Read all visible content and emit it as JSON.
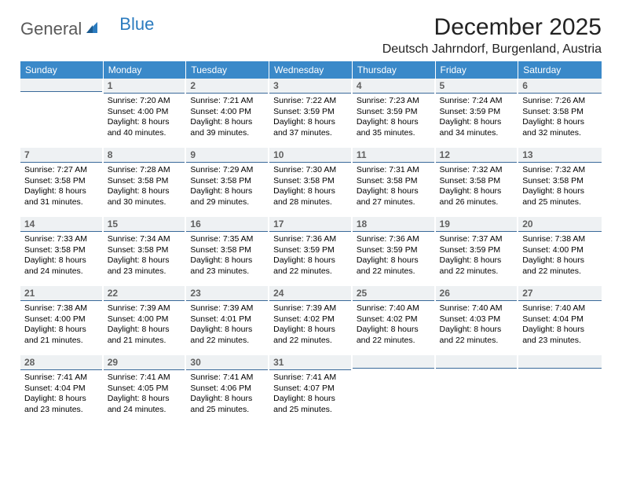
{
  "logo": {
    "word1": "General",
    "word2": "Blue"
  },
  "title": "December 2025",
  "location": "Deutsch Jahrndorf, Burgenland, Austria",
  "day_headers": [
    "Sunday",
    "Monday",
    "Tuesday",
    "Wednesday",
    "Thursday",
    "Friday",
    "Saturday"
  ],
  "colors": {
    "header_bg": "#3a89c9",
    "header_text": "#ffffff",
    "daynum_bg": "#eef1f3",
    "daynum_border": "#3a6a9a",
    "daynum_text": "#606060",
    "logo_gray": "#5a5a5a",
    "logo_blue": "#2b7bbf",
    "body_text": "#000000"
  },
  "fonts": {
    "title_size": 30,
    "location_size": 16,
    "dayhead_size": 12,
    "daynum_size": 12,
    "body_size": 10.5
  },
  "weeks": [
    [
      {
        "blank": true
      },
      {
        "num": "1",
        "sunrise": "Sunrise: 7:20 AM",
        "sunset": "Sunset: 4:00 PM",
        "daylight1": "Daylight: 8 hours",
        "daylight2": "and 40 minutes."
      },
      {
        "num": "2",
        "sunrise": "Sunrise: 7:21 AM",
        "sunset": "Sunset: 4:00 PM",
        "daylight1": "Daylight: 8 hours",
        "daylight2": "and 39 minutes."
      },
      {
        "num": "3",
        "sunrise": "Sunrise: 7:22 AM",
        "sunset": "Sunset: 3:59 PM",
        "daylight1": "Daylight: 8 hours",
        "daylight2": "and 37 minutes."
      },
      {
        "num": "4",
        "sunrise": "Sunrise: 7:23 AM",
        "sunset": "Sunset: 3:59 PM",
        "daylight1": "Daylight: 8 hours",
        "daylight2": "and 35 minutes."
      },
      {
        "num": "5",
        "sunrise": "Sunrise: 7:24 AM",
        "sunset": "Sunset: 3:59 PM",
        "daylight1": "Daylight: 8 hours",
        "daylight2": "and 34 minutes."
      },
      {
        "num": "6",
        "sunrise": "Sunrise: 7:26 AM",
        "sunset": "Sunset: 3:58 PM",
        "daylight1": "Daylight: 8 hours",
        "daylight2": "and 32 minutes."
      }
    ],
    [
      {
        "num": "7",
        "sunrise": "Sunrise: 7:27 AM",
        "sunset": "Sunset: 3:58 PM",
        "daylight1": "Daylight: 8 hours",
        "daylight2": "and 31 minutes."
      },
      {
        "num": "8",
        "sunrise": "Sunrise: 7:28 AM",
        "sunset": "Sunset: 3:58 PM",
        "daylight1": "Daylight: 8 hours",
        "daylight2": "and 30 minutes."
      },
      {
        "num": "9",
        "sunrise": "Sunrise: 7:29 AM",
        "sunset": "Sunset: 3:58 PM",
        "daylight1": "Daylight: 8 hours",
        "daylight2": "and 29 minutes."
      },
      {
        "num": "10",
        "sunrise": "Sunrise: 7:30 AM",
        "sunset": "Sunset: 3:58 PM",
        "daylight1": "Daylight: 8 hours",
        "daylight2": "and 28 minutes."
      },
      {
        "num": "11",
        "sunrise": "Sunrise: 7:31 AM",
        "sunset": "Sunset: 3:58 PM",
        "daylight1": "Daylight: 8 hours",
        "daylight2": "and 27 minutes."
      },
      {
        "num": "12",
        "sunrise": "Sunrise: 7:32 AM",
        "sunset": "Sunset: 3:58 PM",
        "daylight1": "Daylight: 8 hours",
        "daylight2": "and 26 minutes."
      },
      {
        "num": "13",
        "sunrise": "Sunrise: 7:32 AM",
        "sunset": "Sunset: 3:58 PM",
        "daylight1": "Daylight: 8 hours",
        "daylight2": "and 25 minutes."
      }
    ],
    [
      {
        "num": "14",
        "sunrise": "Sunrise: 7:33 AM",
        "sunset": "Sunset: 3:58 PM",
        "daylight1": "Daylight: 8 hours",
        "daylight2": "and 24 minutes."
      },
      {
        "num": "15",
        "sunrise": "Sunrise: 7:34 AM",
        "sunset": "Sunset: 3:58 PM",
        "daylight1": "Daylight: 8 hours",
        "daylight2": "and 23 minutes."
      },
      {
        "num": "16",
        "sunrise": "Sunrise: 7:35 AM",
        "sunset": "Sunset: 3:58 PM",
        "daylight1": "Daylight: 8 hours",
        "daylight2": "and 23 minutes."
      },
      {
        "num": "17",
        "sunrise": "Sunrise: 7:36 AM",
        "sunset": "Sunset: 3:59 PM",
        "daylight1": "Daylight: 8 hours",
        "daylight2": "and 22 minutes."
      },
      {
        "num": "18",
        "sunrise": "Sunrise: 7:36 AM",
        "sunset": "Sunset: 3:59 PM",
        "daylight1": "Daylight: 8 hours",
        "daylight2": "and 22 minutes."
      },
      {
        "num": "19",
        "sunrise": "Sunrise: 7:37 AM",
        "sunset": "Sunset: 3:59 PM",
        "daylight1": "Daylight: 8 hours",
        "daylight2": "and 22 minutes."
      },
      {
        "num": "20",
        "sunrise": "Sunrise: 7:38 AM",
        "sunset": "Sunset: 4:00 PM",
        "daylight1": "Daylight: 8 hours",
        "daylight2": "and 22 minutes."
      }
    ],
    [
      {
        "num": "21",
        "sunrise": "Sunrise: 7:38 AM",
        "sunset": "Sunset: 4:00 PM",
        "daylight1": "Daylight: 8 hours",
        "daylight2": "and 21 minutes."
      },
      {
        "num": "22",
        "sunrise": "Sunrise: 7:39 AM",
        "sunset": "Sunset: 4:00 PM",
        "daylight1": "Daylight: 8 hours",
        "daylight2": "and 21 minutes."
      },
      {
        "num": "23",
        "sunrise": "Sunrise: 7:39 AM",
        "sunset": "Sunset: 4:01 PM",
        "daylight1": "Daylight: 8 hours",
        "daylight2": "and 22 minutes."
      },
      {
        "num": "24",
        "sunrise": "Sunrise: 7:39 AM",
        "sunset": "Sunset: 4:02 PM",
        "daylight1": "Daylight: 8 hours",
        "daylight2": "and 22 minutes."
      },
      {
        "num": "25",
        "sunrise": "Sunrise: 7:40 AM",
        "sunset": "Sunset: 4:02 PM",
        "daylight1": "Daylight: 8 hours",
        "daylight2": "and 22 minutes."
      },
      {
        "num": "26",
        "sunrise": "Sunrise: 7:40 AM",
        "sunset": "Sunset: 4:03 PM",
        "daylight1": "Daylight: 8 hours",
        "daylight2": "and 22 minutes."
      },
      {
        "num": "27",
        "sunrise": "Sunrise: 7:40 AM",
        "sunset": "Sunset: 4:04 PM",
        "daylight1": "Daylight: 8 hours",
        "daylight2": "and 23 minutes."
      }
    ],
    [
      {
        "num": "28",
        "sunrise": "Sunrise: 7:41 AM",
        "sunset": "Sunset: 4:04 PM",
        "daylight1": "Daylight: 8 hours",
        "daylight2": "and 23 minutes."
      },
      {
        "num": "29",
        "sunrise": "Sunrise: 7:41 AM",
        "sunset": "Sunset: 4:05 PM",
        "daylight1": "Daylight: 8 hours",
        "daylight2": "and 24 minutes."
      },
      {
        "num": "30",
        "sunrise": "Sunrise: 7:41 AM",
        "sunset": "Sunset: 4:06 PM",
        "daylight1": "Daylight: 8 hours",
        "daylight2": "and 25 minutes."
      },
      {
        "num": "31",
        "sunrise": "Sunrise: 7:41 AM",
        "sunset": "Sunset: 4:07 PM",
        "daylight1": "Daylight: 8 hours",
        "daylight2": "and 25 minutes."
      },
      {
        "blank": true
      },
      {
        "blank": true
      },
      {
        "blank": true
      }
    ]
  ]
}
